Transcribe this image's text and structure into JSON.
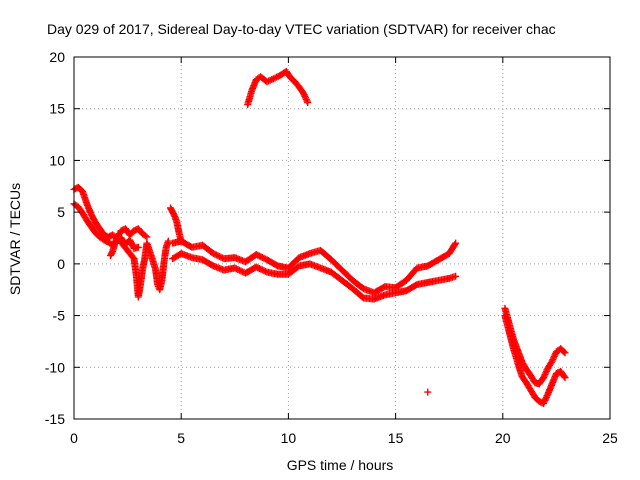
{
  "chart_data": {
    "type": "scatter",
    "title": "Day 029 of 2017, Sidereal Day-to-day VTEC variation (SDTVAR) for receiver chac",
    "xlabel": "GPS time / hours",
    "ylabel": "SDTVAR / TECUs",
    "xlim": [
      0,
      25
    ],
    "ylim": [
      -15,
      20
    ],
    "x_ticks": [
      0,
      5,
      10,
      15,
      20,
      25
    ],
    "x_tick_labels": [
      "0",
      "5",
      "10",
      "15",
      "20",
      "25"
    ],
    "y_ticks": [
      -15,
      -10,
      -5,
      0,
      5,
      10,
      15,
      20
    ],
    "y_tick_labels": [
      "-15",
      "-10",
      "-5",
      "0",
      "5",
      "10",
      "15",
      "20"
    ],
    "grid": true,
    "marker": "+",
    "series": [
      {
        "name": "SDTVAR",
        "color": "#ff0000",
        "segments": [
          {
            "name": "early-decline-upper",
            "x": [
              0.0,
              0.2,
              0.4,
              0.6,
              0.8,
              1.0,
              1.2,
              1.4,
              1.6,
              1.8,
              2.0,
              2.2,
              2.4,
              2.6,
              2.8,
              3.0,
              3.2,
              3.4
            ],
            "y": [
              7.2,
              7.4,
              7.0,
              5.8,
              4.8,
              4.0,
              3.4,
              2.8,
              2.6,
              2.8,
              2.5,
              3.2,
              3.4,
              2.8,
              3.2,
              3.4,
              2.9,
              2.6
            ]
          },
          {
            "name": "early-decline-lower",
            "x": [
              0.0,
              0.2,
              0.4,
              0.6,
              0.8,
              1.0,
              1.2,
              1.4,
              1.6,
              1.8,
              2.0,
              2.2,
              2.4,
              2.6,
              2.8,
              3.0
            ],
            "y": [
              5.8,
              5.5,
              4.9,
              4.2,
              3.6,
              3.0,
              2.6,
              2.3,
              2.1,
              1.8,
              2.2,
              2.5,
              1.9,
              2.3,
              1.5,
              1.6
            ]
          },
          {
            "name": "dip-near-3h",
            "x": [
              1.7,
              1.8,
              2.0,
              2.8,
              2.9,
              3.0,
              3.1,
              3.2,
              3.3,
              3.4,
              3.6,
              3.8,
              3.9,
              4.0,
              4.1,
              4.2,
              4.3,
              4.4
            ],
            "y": [
              0.8,
              1.2,
              2.6,
              0.5,
              -1.0,
              -3.2,
              -2.0,
              -0.5,
              0.5,
              2.0,
              0.8,
              -0.5,
              -2.0,
              -2.5,
              -1.6,
              0.2,
              1.6,
              2.2
            ]
          },
          {
            "name": "early-spike",
            "x": [
              4.5,
              4.6,
              4.7,
              4.8,
              4.9,
              5.0
            ],
            "y": [
              5.4,
              5.0,
              4.6,
              4.0,
              3.0,
              2.2
            ]
          },
          {
            "name": "midday-band-upper",
            "x": [
              4.6,
              5.0,
              5.5,
              6.0,
              6.5,
              7.0,
              7.5,
              8.0,
              8.5,
              9.0,
              9.5,
              10.0,
              10.5,
              11.0,
              11.5,
              12.0,
              12.5,
              13.0,
              13.5,
              14.0,
              14.5,
              15.0,
              15.5,
              16.0,
              16.5,
              17.0,
              17.5,
              17.8
            ],
            "y": [
              2.0,
              2.2,
              1.6,
              1.8,
              1.0,
              0.5,
              0.6,
              0.2,
              0.9,
              0.4,
              -0.2,
              -0.4,
              0.6,
              1.0,
              1.3,
              0.4,
              -0.6,
              -1.6,
              -2.4,
              -2.8,
              -2.2,
              -2.3,
              -1.6,
              -0.4,
              -0.2,
              0.4,
              1.0,
              2.0
            ]
          },
          {
            "name": "midday-band-lower",
            "x": [
              4.6,
              5.0,
              5.5,
              6.0,
              6.5,
              7.0,
              7.5,
              8.0,
              8.5,
              9.0,
              9.5,
              10.0,
              10.5,
              11.0,
              11.5,
              12.0,
              12.5,
              13.0,
              13.5,
              14.0,
              14.5,
              15.0,
              15.5,
              16.0,
              16.5,
              17.0,
              17.5,
              17.8
            ],
            "y": [
              0.5,
              1.0,
              0.6,
              0.4,
              -0.2,
              -0.6,
              -0.4,
              -0.9,
              -0.3,
              -0.8,
              -1.0,
              -1.0,
              -0.2,
              0.0,
              -0.4,
              -0.8,
              -1.6,
              -2.4,
              -3.3,
              -3.4,
              -3.0,
              -2.8,
              -2.6,
              -2.0,
              -1.8,
              -1.6,
              -1.4,
              -1.2
            ]
          },
          {
            "name": "high-arc",
            "x": [
              8.1,
              8.3,
              8.5,
              8.7,
              9.0,
              9.3,
              9.6,
              9.9,
              10.1,
              10.3,
              10.5,
              10.7,
              10.9
            ],
            "y": [
              15.4,
              16.8,
              17.8,
              18.1,
              17.6,
              17.9,
              18.2,
              18.6,
              18.0,
              17.6,
              17.1,
              16.5,
              15.6
            ]
          },
          {
            "name": "isolated-point",
            "x": [
              16.5
            ],
            "y": [
              -12.4
            ]
          },
          {
            "name": "late-descent-upper",
            "x": [
              20.1,
              20.3,
              20.5,
              20.7,
              20.9,
              21.1,
              21.3,
              21.5,
              21.7,
              21.9,
              22.1,
              22.3,
              22.5,
              22.7,
              22.9
            ],
            "y": [
              -4.3,
              -5.8,
              -7.3,
              -8.4,
              -9.5,
              -10.2,
              -10.8,
              -11.5,
              -11.6,
              -11.0,
              -10.1,
              -9.4,
              -8.5,
              -8.2,
              -8.6
            ]
          },
          {
            "name": "late-descent-lower",
            "x": [
              20.1,
              20.3,
              20.5,
              20.7,
              20.9,
              21.1,
              21.3,
              21.5,
              21.7,
              21.9,
              22.1,
              22.3,
              22.5,
              22.7,
              22.9
            ],
            "y": [
              -5.0,
              -6.6,
              -8.2,
              -9.6,
              -10.9,
              -11.5,
              -12.2,
              -12.9,
              -13.3,
              -13.5,
              -12.6,
              -11.6,
              -10.6,
              -10.4,
              -11.0
            ]
          }
        ]
      }
    ]
  }
}
